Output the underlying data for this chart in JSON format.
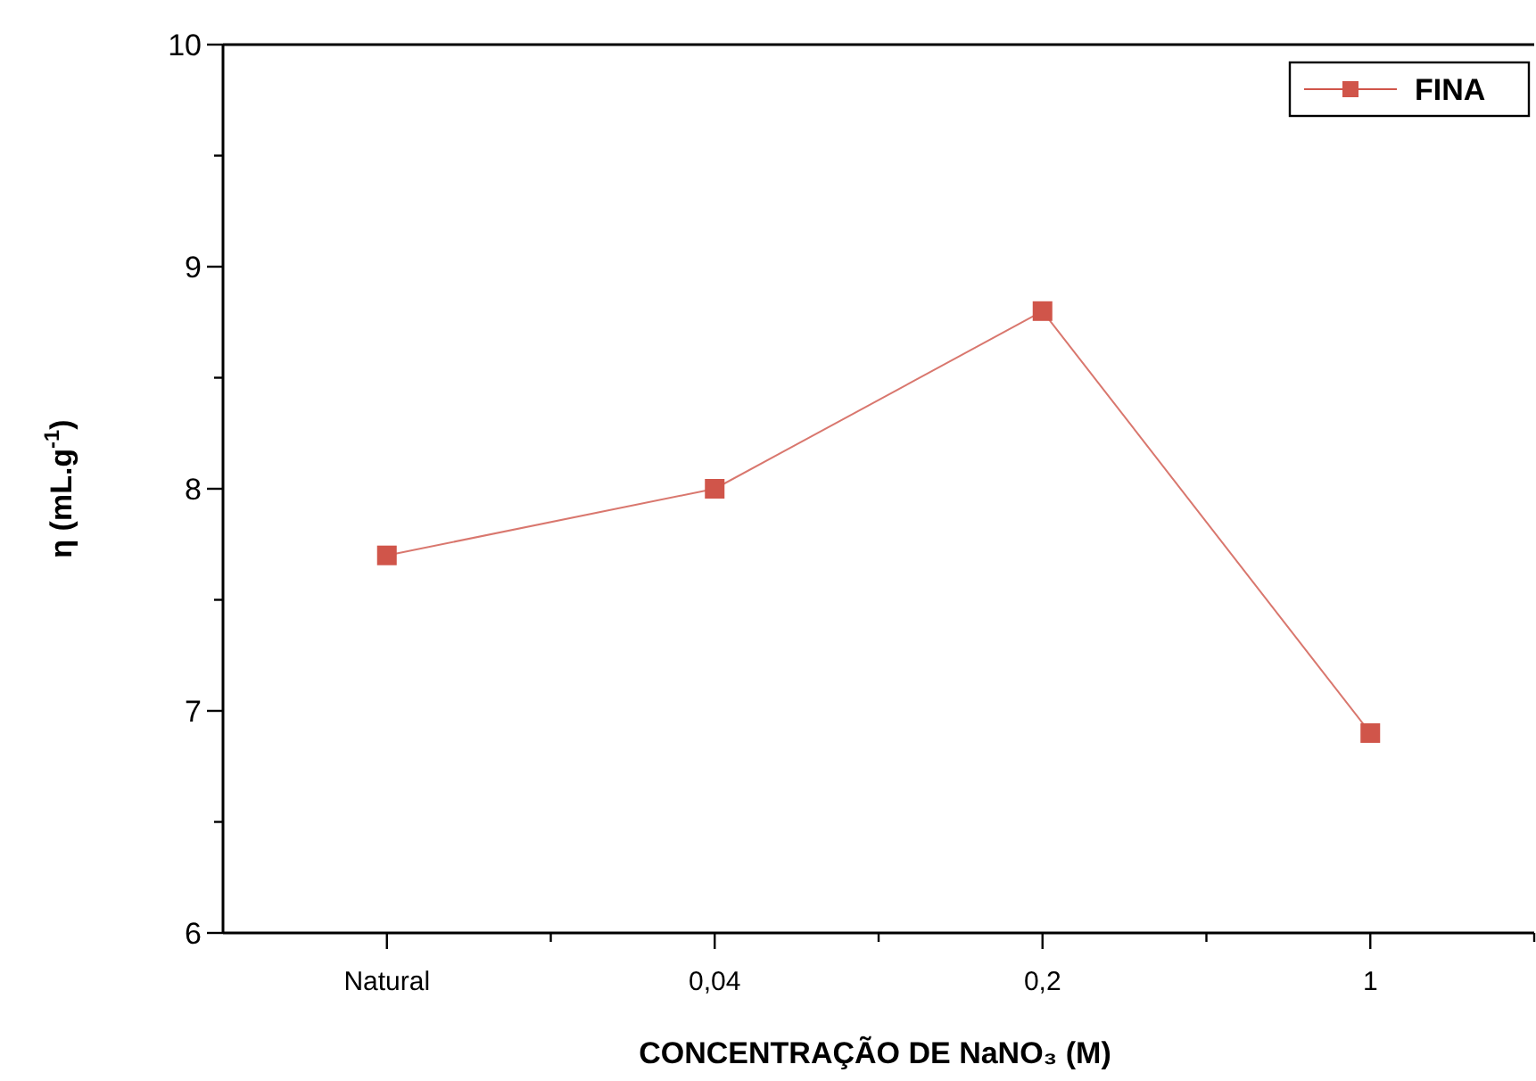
{
  "chart_data": {
    "type": "line",
    "xlabel": "CONCENTRAÇÃO DE NaNO₃ (M)",
    "ylabel": "η (mL.g$^{-1}$)",
    "categories": [
      "Natural",
      "0,04",
      "0,2",
      "1"
    ],
    "series": [
      {
        "name": "FINA",
        "color": "#d0554a",
        "values": [
          7.7,
          8.0,
          8.8,
          6.9
        ]
      }
    ],
    "ylim": [
      6,
      10
    ],
    "yticks": [
      6,
      {
        "value": 6.5,
        "label": null
      },
      7,
      {
        "value": 7.5,
        "label": null
      },
      8,
      {
        "value": 8.5,
        "label": null
      },
      9,
      {
        "value": 9.5,
        "label": null
      },
      10
    ],
    "marker": "square",
    "line_style": "solid",
    "legend": "top right",
    "grid": false
  }
}
